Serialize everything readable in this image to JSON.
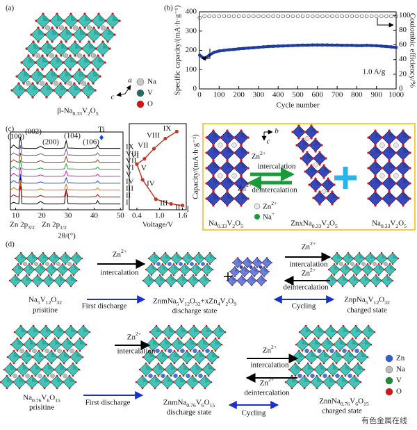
{
  "chart_data": [
    {
      "type": "line",
      "panel_label": "(b)",
      "x_label": "Cycle number",
      "y_label": "Specific capacity/(mA·h·g⁻¹)",
      "y2_label": "Coulombic efficiency/%",
      "annotation": "1.0 A/g",
      "x": [
        1,
        25,
        50,
        75,
        100,
        125,
        150,
        175,
        200,
        225,
        250,
        275,
        300,
        325,
        350,
        375,
        400,
        425,
        450,
        475,
        500,
        525,
        550,
        575,
        600,
        625,
        650,
        675,
        700,
        725,
        750,
        775,
        800,
        825,
        850,
        875,
        900,
        925,
        950,
        975,
        1000
      ],
      "xlim": [
        0,
        1000
      ],
      "xticks": [
        0,
        100,
        200,
        300,
        400,
        500,
        600,
        700,
        800,
        900,
        1000
      ],
      "ylim": [
        0,
        400
      ],
      "yticks": [
        0,
        100,
        200,
        300,
        400
      ],
      "y2lim": [
        0,
        105
      ],
      "y2ticks": [
        0,
        20,
        40,
        60,
        80,
        100
      ],
      "series": [
        {
          "color": "#1f3c9e",
          "marker": "filled",
          "values": [
            175,
            158,
            175,
            190,
            197,
            200,
            203,
            205,
            208,
            210,
            212,
            214,
            216,
            218,
            220,
            221,
            222,
            223,
            224,
            225,
            226,
            227,
            227,
            228,
            228,
            228,
            228,
            227,
            227,
            226,
            226,
            226,
            225,
            225,
            226,
            225,
            224,
            222,
            220,
            218,
            215
          ]
        },
        {
          "color": "#444444",
          "marker": "hollow",
          "axis": "y2",
          "values": [
            97,
            99,
            99,
            99,
            99,
            99,
            99,
            99,
            99,
            99,
            99,
            99,
            99,
            99,
            99,
            99,
            99,
            99,
            99,
            99,
            99,
            99,
            99,
            99,
            99,
            99,
            99,
            99,
            99,
            99,
            99,
            99,
            99,
            99,
            99,
            99,
            99,
            99,
            99,
            99,
            99
          ]
        }
      ]
    },
    {
      "type": "waterfall",
      "panel_label": "(c)",
      "x_label": "2θ/(°)",
      "x": [
        8,
        9.2,
        10.5,
        11.2,
        11.8,
        12.4,
        14,
        16,
        18,
        19.5,
        21,
        24,
        27,
        28.6,
        29.3,
        30,
        34,
        38,
        40.6,
        41.3,
        42,
        46,
        50
      ],
      "xlim": [
        8,
        51
      ],
      "xticks": [
        10,
        20,
        30,
        40,
        50
      ],
      "ylim": [
        0,
        100
      ],
      "annotations": [
        "(100)",
        "(002)",
        "(200)",
        "(104)",
        "(106)",
        "Ti"
      ],
      "bottom_annotations": [
        "Zn 2p3/2",
        "Zn 2p1/2"
      ],
      "series": [
        {
          "name": "I",
          "color": "#000000",
          "values": [
            4,
            8,
            5,
            4,
            70,
            5,
            4,
            4,
            4,
            10,
            4,
            4,
            4,
            5,
            40,
            5,
            4,
            4,
            5,
            12,
            4,
            4,
            4
          ]
        },
        {
          "name": "II",
          "color": "#c00000",
          "values": [
            4,
            9,
            5,
            4,
            30,
            5,
            4,
            4,
            4,
            8,
            4,
            4,
            4,
            5,
            20,
            5,
            4,
            4,
            5,
            10,
            4,
            4,
            4
          ]
        },
        {
          "name": "III",
          "color": "#e07000",
          "values": [
            4,
            10,
            5,
            4,
            28,
            5,
            4,
            4,
            4,
            7,
            4,
            4,
            4,
            5,
            18,
            5,
            4,
            4,
            5,
            9,
            4,
            4,
            4
          ]
        },
        {
          "name": "IV",
          "color": "#1f4fd0",
          "values": [
            4,
            10,
            5,
            4,
            26,
            5,
            4,
            4,
            4,
            7,
            4,
            4,
            4,
            5,
            17,
            5,
            4,
            4,
            5,
            9,
            4,
            4,
            4
          ]
        },
        {
          "name": "V",
          "color": "#d020c0",
          "values": [
            4,
            11,
            5,
            4,
            25,
            5,
            4,
            4,
            4,
            7,
            4,
            4,
            4,
            5,
            16,
            5,
            4,
            4,
            5,
            9,
            4,
            4,
            4
          ]
        },
        {
          "name": "VI",
          "color": "#20a040",
          "values": [
            4,
            11,
            5,
            4,
            26,
            5,
            4,
            4,
            4,
            7,
            4,
            4,
            4,
            5,
            17,
            5,
            4,
            4,
            5,
            9,
            4,
            4,
            4
          ]
        },
        {
          "name": "VII",
          "color": "#8b4513",
          "values": [
            4,
            10,
            5,
            4,
            27,
            5,
            4,
            4,
            4,
            8,
            4,
            4,
            4,
            5,
            18,
            5,
            4,
            4,
            5,
            10,
            4,
            4,
            4
          ]
        },
        {
          "name": "VIII",
          "color": "#6060a0",
          "values": [
            4,
            10,
            5,
            4,
            28,
            5,
            4,
            4,
            4,
            8,
            4,
            4,
            4,
            5,
            19,
            5,
            4,
            4,
            5,
            10,
            4,
            4,
            4
          ]
        },
        {
          "name": "IX",
          "color": "#000000",
          "values": [
            4,
            12,
            5,
            4,
            32,
            5,
            4,
            4,
            4,
            9,
            4,
            4,
            4,
            5,
            22,
            5,
            4,
            4,
            5,
            12,
            4,
            4,
            4
          ]
        }
      ]
    },
    {
      "type": "line",
      "x_label": "Voltage/V",
      "y_label": "Capacity/(mA·h·g⁻¹)",
      "color": "#c0392b",
      "x": [
        1.6,
        1.3,
        0.9,
        0.55,
        0.4,
        0.6,
        0.85,
        1.15,
        1.45
      ],
      "values": [
        2,
        4,
        10,
        35,
        55,
        62,
        75,
        88,
        97
      ],
      "point_labels": [
        "I",
        "II",
        "III",
        "IV",
        "V",
        "VI",
        "VII",
        "VIII",
        "IX"
      ],
      "xlim": [
        0.2,
        1.7
      ],
      "xticks": [
        0.4,
        {
          "value": 1.0,
          "label": "1.0"
        },
        1.6
      ],
      "ylim": [
        0,
        100
      ]
    }
  ],
  "figure": {
    "panel_a": {
      "label": "(a)",
      "legend": [
        "Na",
        "V",
        "O"
      ],
      "axes": [
        "a",
        "c"
      ],
      "caption": "β-Na0.33V2O5"
    },
    "scheme_c": {
      "intercalation": [
        "Zn2+",
        "intercalation"
      ],
      "deintercalation": [
        "Zn2+",
        "deintercalation"
      ],
      "legend": [
        "Zn2+",
        "Na+"
      ],
      "axes": [
        "b",
        "c"
      ],
      "structures": [
        "Na0.33V2O5",
        "ZnxNa0.33V2O5",
        "Na0.33V2O5"
      ]
    },
    "panel_d": {
      "label": "(d)",
      "row1": {
        "steps": [
          "Zn2+",
          "intercalation",
          "Zn2+",
          "intercalation",
          "Zn2+",
          "deintercalation",
          "First discharge",
          "Cycling"
        ],
        "states": [
          "Na5V12O32",
          "prisitine",
          "ZnmNa5V12O32+xZn4V2O9",
          "discharge state",
          "ZnpNa5V12O32",
          "charged state"
        ]
      },
      "row2": {
        "steps": [
          "Zn2+",
          "intercalation",
          "Zn2+",
          "intercalation",
          "Zn2+",
          "deintercalation",
          "First discharge",
          "Cycling"
        ],
        "states": [
          "Na0.76V6O15",
          "prisitine",
          "ZnmNa0.76V6O15",
          "discharge state",
          "ZnnNa0.76V6O15",
          "charged state"
        ]
      },
      "legend": [
        "Zn",
        "Na",
        "V",
        "O"
      ]
    },
    "watermark": "有色金属在线"
  }
}
